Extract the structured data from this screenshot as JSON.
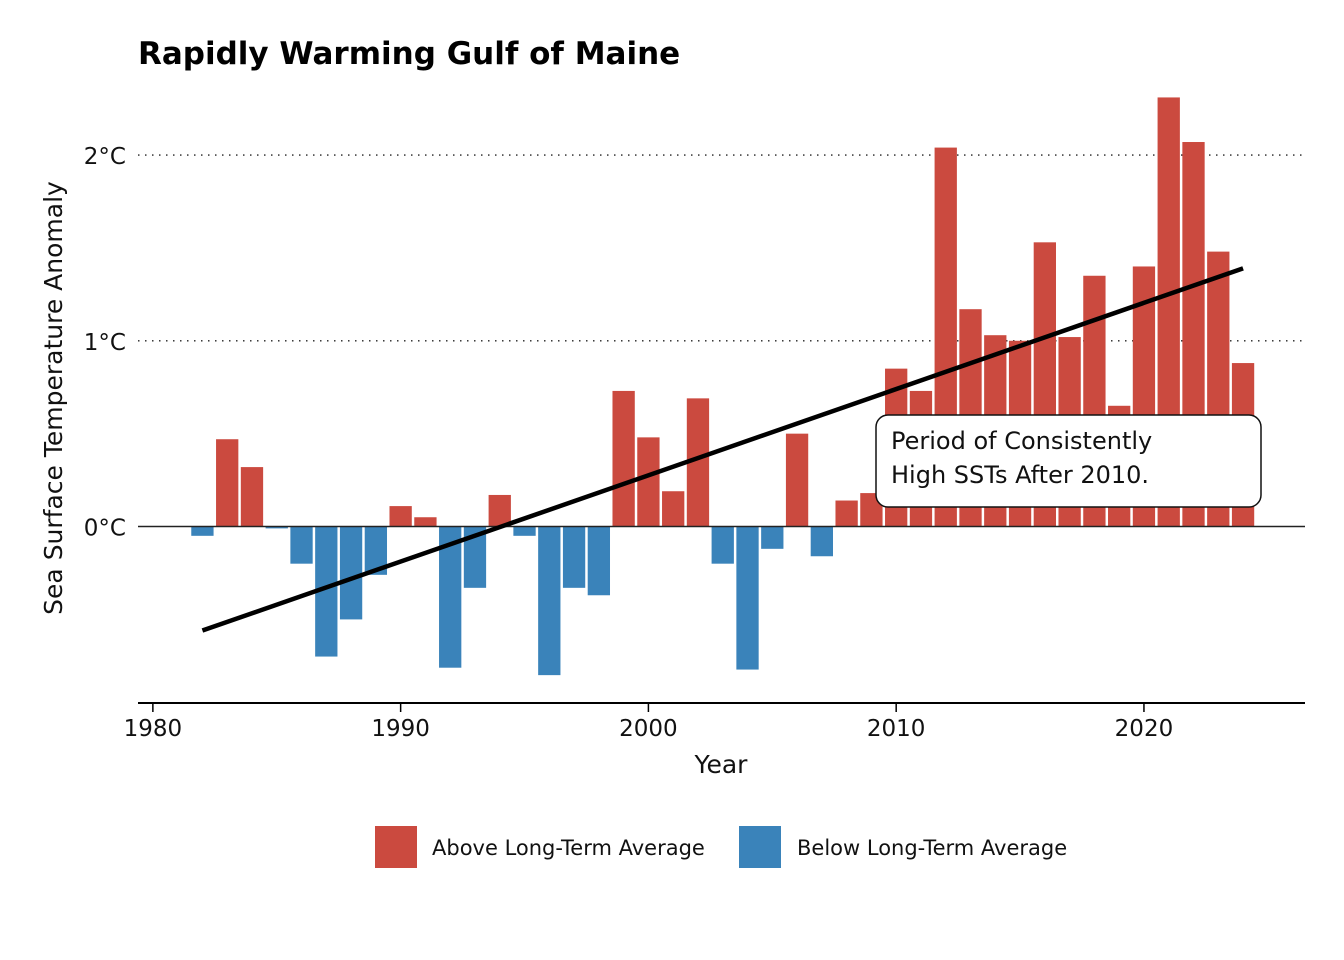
{
  "chart_data": {
    "type": "bar",
    "title": "Rapidly Warming Gulf of Maine",
    "xlabel": "Year",
    "ylabel": "Sea Surface Temperature Anomaly",
    "xlim": [
      1979.4,
      2026.5
    ],
    "ylim": [
      -0.95,
      2.35
    ],
    "x_ticks": [
      1980,
      1990,
      2000,
      2010,
      2020
    ],
    "x_tick_labels": [
      "1980",
      "1990",
      "2000",
      "2010",
      "2020"
    ],
    "y_ticks": [
      0,
      1,
      2
    ],
    "y_tick_labels": [
      "0°C",
      "1°C",
      "2°C"
    ],
    "grid": "horizontal dotted at 1°C and 2°C",
    "legend_position": "bottom",
    "colors": {
      "above": "#CB4A3F",
      "below": "#3A83BA"
    },
    "series": [
      {
        "name": "Above Long-Term Average",
        "color": "#CB4A3F"
      },
      {
        "name": "Below Long-Term Average",
        "color": "#3A83BA"
      }
    ],
    "x": [
      1982,
      1983,
      1984,
      1985,
      1986,
      1987,
      1988,
      1989,
      1990,
      1991,
      1992,
      1993,
      1994,
      1995,
      1996,
      1997,
      1998,
      1999,
      2000,
      2001,
      2002,
      2003,
      2004,
      2005,
      2006,
      2007,
      2008,
      2009,
      2010,
      2011,
      2012,
      2013,
      2014,
      2015,
      2016,
      2017,
      2018,
      2019,
      2020,
      2021,
      2022,
      2023,
      2024
    ],
    "values": [
      -0.05,
      0.47,
      0.32,
      -0.01,
      -0.2,
      -0.7,
      -0.5,
      -0.26,
      0.11,
      0.05,
      -0.76,
      -0.33,
      0.17,
      -0.05,
      -0.8,
      -0.33,
      -0.37,
      0.73,
      0.48,
      0.19,
      0.69,
      -0.2,
      -0.77,
      -0.12,
      0.5,
      -0.16,
      0.14,
      0.18,
      0.85,
      0.73,
      2.04,
      1.17,
      1.03,
      1.0,
      1.53,
      1.02,
      1.35,
      0.65,
      1.4,
      2.31,
      2.07,
      1.48,
      0.88
    ],
    "trend_line": {
      "x": [
        1982,
        2024
      ],
      "y": [
        -0.56,
        1.39
      ]
    },
    "annotation": [
      "Period of Consistently",
      "High SSTs After 2010."
    ]
  }
}
